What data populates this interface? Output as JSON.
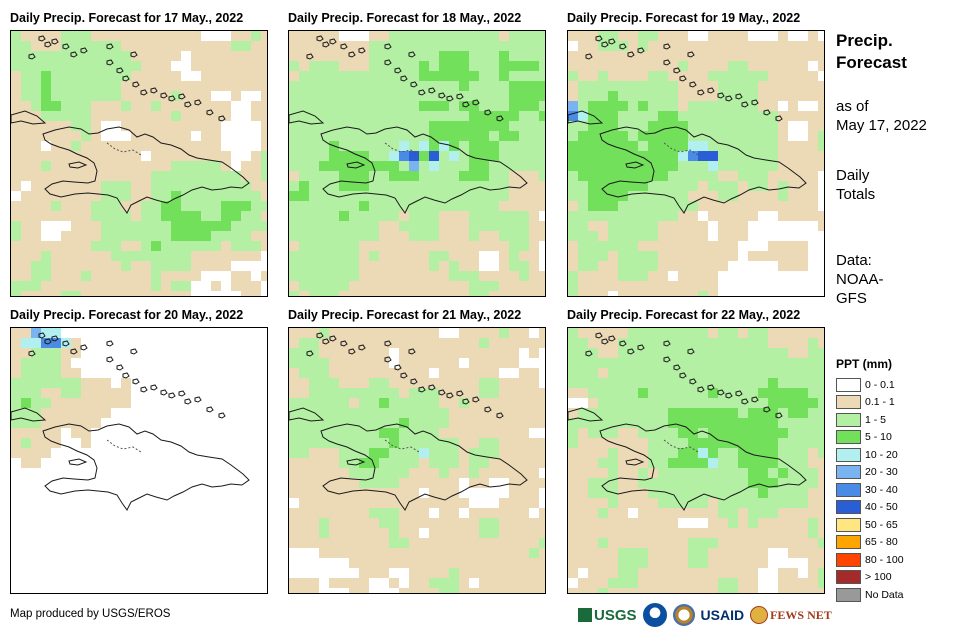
{
  "panels": [
    {
      "title": "Daily Precip. Forecast for 17 May., 2022",
      "day": "17"
    },
    {
      "title": "Daily Precip. Forecast for 18 May., 2022",
      "day": "18"
    },
    {
      "title": "Daily Precip. Forecast for 19 May., 2022",
      "day": "19"
    },
    {
      "title": "Daily Precip. Forecast for 20 May., 2022",
      "day": "20"
    },
    {
      "title": "Daily Precip. Forecast for 21 May., 2022",
      "day": "21"
    },
    {
      "title": "Daily Precip. Forecast for 22 May., 2022",
      "day": "22"
    }
  ],
  "sidebar": {
    "title_line1": "Precip.",
    "title_line2": "Forecast",
    "asof_line1": "as of",
    "asof_line2": "May 17, 2022",
    "totals_line1": "Daily",
    "totals_line2": "Totals",
    "data_line1": "Data:",
    "data_line2": "NOAA-",
    "data_line3": "GFS"
  },
  "legend": {
    "title": "PPT (mm)",
    "items": [
      {
        "label": "0 - 0.1",
        "color": "#ffffff"
      },
      {
        "label": "0.1 - 1",
        "color": "#ecd9b6"
      },
      {
        "label": "1 - 5",
        "color": "#b3f0a3"
      },
      {
        "label": "5 - 10",
        "color": "#72e05a"
      },
      {
        "label": "10 - 20",
        "color": "#b2f0f0"
      },
      {
        "label": "20 - 30",
        "color": "#7ab4f0"
      },
      {
        "label": "30 - 40",
        "color": "#4a8be6"
      },
      {
        "label": "40 - 50",
        "color": "#2a5ed6"
      },
      {
        "label": "50 - 65",
        "color": "#ffe680"
      },
      {
        "label": "65 - 80",
        "color": "#ffa500"
      },
      {
        "label": "80 - 100",
        "color": "#ff4500"
      },
      {
        "label": "> 100",
        "color": "#a52a2a"
      },
      {
        "label": "No Data",
        "color": "#999999"
      }
    ]
  },
  "footer": {
    "credit": "Map produced by USGS/EROS",
    "logo_usgs": "USGS",
    "logo_usaid": "USAID",
    "logo_fews": "FEWS NET"
  }
}
